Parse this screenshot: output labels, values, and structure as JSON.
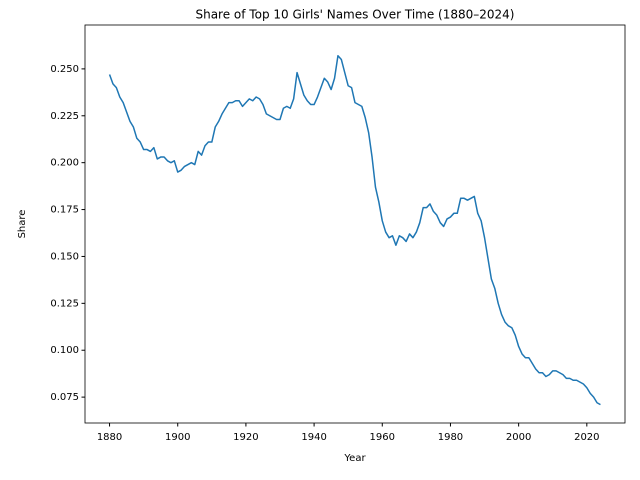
{
  "chart_data": {
    "type": "line",
    "title": "Share of Top 10 Girls' Names Over Time (1880–2024)",
    "x_label": "Year",
    "y_label": "Share",
    "x": [
      1880,
      1881,
      1882,
      1883,
      1884,
      1885,
      1886,
      1887,
      1888,
      1889,
      1890,
      1891,
      1892,
      1893,
      1894,
      1895,
      1896,
      1897,
      1898,
      1899,
      1900,
      1901,
      1902,
      1903,
      1904,
      1905,
      1906,
      1907,
      1908,
      1909,
      1910,
      1911,
      1912,
      1913,
      1914,
      1915,
      1916,
      1917,
      1918,
      1919,
      1920,
      1921,
      1922,
      1923,
      1924,
      1925,
      1926,
      1927,
      1928,
      1929,
      1930,
      1931,
      1932,
      1933,
      1934,
      1935,
      1936,
      1937,
      1938,
      1939,
      1940,
      1941,
      1942,
      1943,
      1944,
      1945,
      1946,
      1947,
      1948,
      1949,
      1950,
      1951,
      1952,
      1953,
      1954,
      1955,
      1956,
      1957,
      1958,
      1959,
      1960,
      1961,
      1962,
      1963,
      1964,
      1965,
      1966,
      1967,
      1968,
      1969,
      1970,
      1971,
      1972,
      1973,
      1974,
      1975,
      1976,
      1977,
      1978,
      1979,
      1980,
      1981,
      1982,
      1983,
      1984,
      1985,
      1986,
      1987,
      1988,
      1989,
      1990,
      1991,
      1992,
      1993,
      1994,
      1995,
      1996,
      1997,
      1998,
      1999,
      2000,
      2001,
      2002,
      2003,
      2004,
      2005,
      2006,
      2007,
      2008,
      2009,
      2010,
      2011,
      2012,
      2013,
      2014,
      2015,
      2016,
      2017,
      2018,
      2019,
      2020,
      2021,
      2022,
      2023,
      2024
    ],
    "series": [
      {
        "name": "Share",
        "color": "#1f77b4",
        "values": [
          0.247,
          0.242,
          0.24,
          0.235,
          0.232,
          0.227,
          0.222,
          0.219,
          0.213,
          0.211,
          0.207,
          0.207,
          0.206,
          0.208,
          0.202,
          0.203,
          0.203,
          0.201,
          0.2,
          0.201,
          0.195,
          0.196,
          0.198,
          0.199,
          0.2,
          0.199,
          0.206,
          0.204,
          0.209,
          0.211,
          0.211,
          0.219,
          0.222,
          0.226,
          0.229,
          0.232,
          0.232,
          0.233,
          0.233,
          0.23,
          0.232,
          0.234,
          0.233,
          0.235,
          0.234,
          0.231,
          0.226,
          0.225,
          0.224,
          0.223,
          0.223,
          0.229,
          0.23,
          0.229,
          0.234,
          0.248,
          0.242,
          0.236,
          0.233,
          0.231,
          0.231,
          0.235,
          0.24,
          0.245,
          0.243,
          0.239,
          0.245,
          0.257,
          0.255,
          0.248,
          0.241,
          0.24,
          0.232,
          0.231,
          0.23,
          0.224,
          0.216,
          0.203,
          0.187,
          0.179,
          0.169,
          0.163,
          0.16,
          0.161,
          0.156,
          0.161,
          0.16,
          0.158,
          0.162,
          0.16,
          0.163,
          0.168,
          0.176,
          0.176,
          0.178,
          0.174,
          0.172,
          0.168,
          0.166,
          0.17,
          0.171,
          0.173,
          0.173,
          0.181,
          0.181,
          0.18,
          0.181,
          0.182,
          0.173,
          0.169,
          0.16,
          0.149,
          0.138,
          0.133,
          0.125,
          0.119,
          0.115,
          0.113,
          0.112,
          0.108,
          0.102,
          0.098,
          0.096,
          0.096,
          0.093,
          0.09,
          0.088,
          0.088,
          0.086,
          0.087,
          0.089,
          0.089,
          0.088,
          0.087,
          0.085,
          0.085,
          0.084,
          0.084,
          0.083,
          0.082,
          0.08,
          0.077,
          0.075,
          0.072,
          0.071
        ]
      }
    ],
    "xlim": [
      1872.8,
      2031.2
    ],
    "ylim": [
      0.0612,
      0.2734
    ],
    "xticks": [
      1880,
      1900,
      1920,
      1940,
      1960,
      1980,
      2000,
      2020
    ],
    "yticks": [
      0.075,
      {
        "value": 0.1,
        "label": "0.100"
      },
      0.125,
      {
        "value": 0.15,
        "label": "0.150"
      },
      0.175,
      {
        "value": 0.2,
        "label": "0.200"
      },
      0.225,
      {
        "value": 0.25,
        "label": "0.250"
      }
    ],
    "grid": false
  }
}
